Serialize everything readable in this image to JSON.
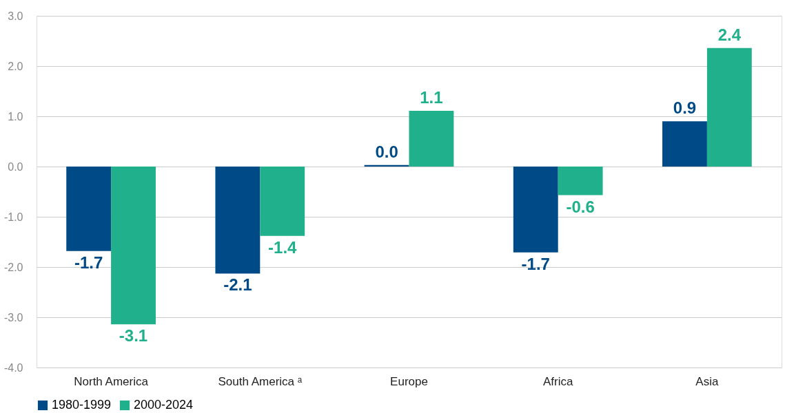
{
  "chart_data": {
    "type": "bar",
    "categories": [
      "North America",
      "South America ᵃ",
      "Europe",
      "Africa",
      "Asia"
    ],
    "series": [
      {
        "name": "1980-1999",
        "color": "#004b87",
        "values": [
          -1.68,
          -2.13,
          0.03,
          -1.71,
          0.9
        ],
        "value_labels": [
          "-1.7",
          "-2.1",
          "0.0",
          "-1.7",
          "0.9"
        ]
      },
      {
        "name": "2000-2024",
        "color": "#20b08c",
        "values": [
          -3.14,
          -1.38,
          1.11,
          -0.57,
          2.36
        ],
        "value_labels": [
          "-3.1",
          "-1.4",
          "1.1",
          "-0.6",
          "2.4"
        ]
      }
    ],
    "ylim": [
      -4,
      3
    ],
    "yticks": [
      {
        "value": -4,
        "label": "-4.0"
      },
      {
        "value": -3,
        "label": "-3.0"
      },
      {
        "value": -2,
        "label": "-2.0"
      },
      {
        "value": -1,
        "label": "-1.0"
      },
      {
        "value": 0,
        "label": "0.0"
      },
      {
        "value": 1,
        "label": "1.0"
      },
      {
        "value": 2,
        "label": "2.0"
      },
      {
        "value": 3,
        "label": "3.0"
      }
    ],
    "grid": "y",
    "legend": "bottom"
  }
}
